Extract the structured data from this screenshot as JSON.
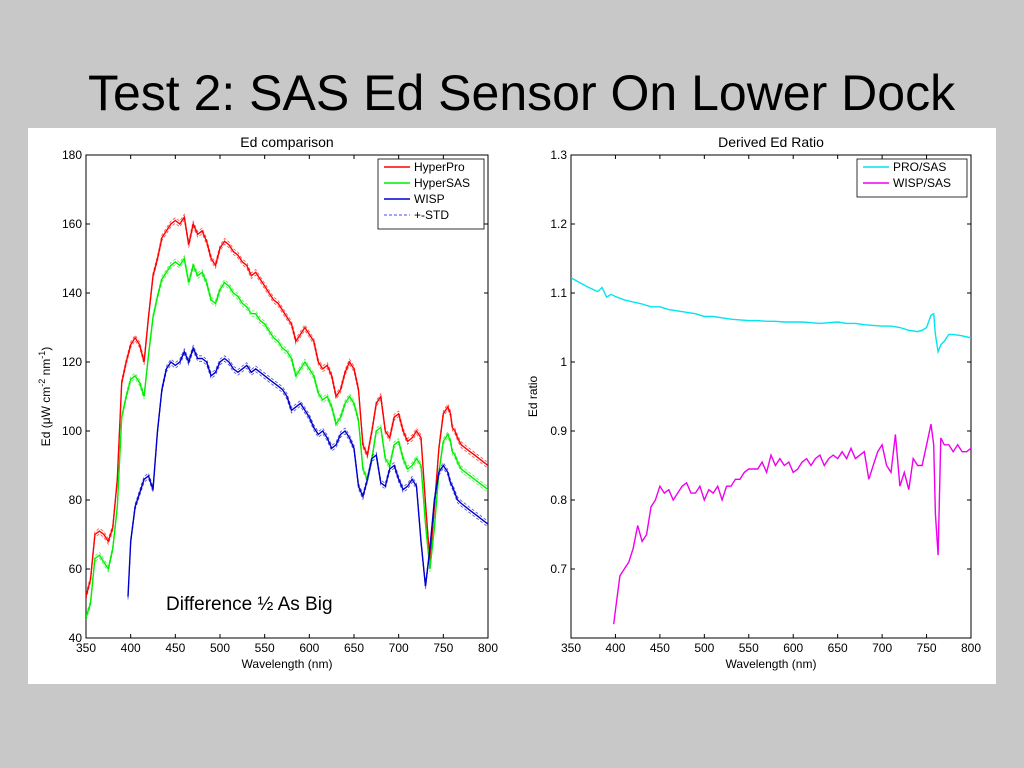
{
  "slide": {
    "title": "Test 2: SAS Ed Sensor On Lower Dock",
    "annotation": "Difference ½  As Big"
  },
  "chart_data": [
    {
      "type": "line",
      "title": "Ed comparison",
      "xlabel": "Wavelength (nm)",
      "ylabel_parts": [
        "Ed (",
        "μ",
        "W cm",
        "-2",
        " nm",
        "-1",
        ")"
      ],
      "xlim": [
        350,
        800
      ],
      "ylim": [
        40,
        180
      ],
      "xticks": [
        350,
        400,
        450,
        500,
        550,
        600,
        650,
        700,
        750,
        800
      ],
      "yticks": [
        40,
        60,
        80,
        100,
        120,
        140,
        160,
        180
      ],
      "grid": false,
      "legend_position": "top-right",
      "std_legend_label": "+-STD",
      "std_offset": 0.8,
      "series": [
        {
          "name": "HyperPro",
          "color": "#ff0000",
          "with_std": true,
          "x": [
            350,
            355,
            360,
            365,
            370,
            375,
            380,
            385,
            390,
            395,
            400,
            405,
            410,
            415,
            420,
            425,
            430,
            435,
            440,
            445,
            450,
            455,
            460,
            465,
            470,
            475,
            480,
            485,
            490,
            495,
            500,
            505,
            510,
            515,
            520,
            525,
            530,
            535,
            540,
            545,
            550,
            555,
            560,
            565,
            570,
            575,
            580,
            585,
            590,
            595,
            600,
            605,
            610,
            615,
            620,
            625,
            630,
            635,
            640,
            645,
            650,
            655,
            660,
            665,
            670,
            675,
            680,
            685,
            690,
            695,
            700,
            705,
            710,
            715,
            720,
            725,
            730,
            735,
            740,
            745,
            750,
            755,
            758,
            760,
            763,
            766,
            770,
            775,
            780,
            785,
            790,
            795,
            800
          ],
          "y": [
            52,
            57,
            70,
            71,
            70,
            68,
            72,
            86,
            114,
            120,
            125,
            127,
            125,
            120,
            133,
            145,
            150,
            156,
            158,
            160,
            161,
            160,
            162,
            154,
            160,
            157,
            158,
            155,
            150,
            148,
            153,
            155,
            154,
            152,
            151,
            149,
            148,
            145,
            146,
            144,
            142,
            140,
            138,
            137,
            135,
            133,
            131,
            126,
            128,
            130,
            128,
            126,
            120,
            118,
            119,
            116,
            110,
            112,
            117,
            120,
            118,
            112,
            96,
            93,
            100,
            108,
            110,
            100,
            98,
            104,
            105,
            100,
            97,
            98,
            100,
            98,
            79,
            62,
            78,
            95,
            105,
            107,
            105,
            101,
            100,
            98,
            96,
            95,
            94,
            93,
            92,
            91,
            90
          ]
        },
        {
          "name": "HyperSAS",
          "color": "#00ee00",
          "with_std": true,
          "x": [
            350,
            355,
            360,
            365,
            370,
            375,
            380,
            385,
            390,
            395,
            400,
            405,
            410,
            415,
            420,
            425,
            430,
            435,
            440,
            445,
            450,
            455,
            460,
            465,
            470,
            475,
            480,
            485,
            490,
            495,
            500,
            505,
            510,
            515,
            520,
            525,
            530,
            535,
            540,
            545,
            550,
            555,
            560,
            565,
            570,
            575,
            580,
            585,
            590,
            595,
            600,
            605,
            610,
            615,
            620,
            625,
            630,
            635,
            640,
            645,
            650,
            655,
            660,
            665,
            670,
            675,
            680,
            685,
            690,
            695,
            700,
            705,
            710,
            715,
            720,
            725,
            730,
            735,
            740,
            745,
            750,
            755,
            758,
            760,
            763,
            766,
            770,
            775,
            780,
            785,
            790,
            795,
            800
          ],
          "y": [
            46,
            50,
            63,
            64,
            62,
            60,
            66,
            78,
            104,
            110,
            115,
            116,
            114,
            110,
            122,
            133,
            139,
            144,
            146,
            148,
            149,
            148,
            150,
            143,
            148,
            145,
            146,
            143,
            138,
            137,
            141,
            143,
            142,
            140,
            139,
            137,
            136,
            134,
            134,
            132,
            131,
            129,
            127,
            126,
            124,
            123,
            121,
            116,
            118,
            120,
            118,
            116,
            111,
            109,
            110,
            107,
            102,
            104,
            108,
            110,
            108,
            103,
            89,
            86,
            92,
            100,
            101,
            92,
            90,
            96,
            97,
            92,
            89,
            90,
            92,
            90,
            73,
            60,
            72,
            88,
            97,
            99,
            97,
            94,
            93,
            91,
            89,
            88,
            87,
            86,
            85,
            84,
            83
          ]
        },
        {
          "name": "WISP",
          "color": "#0000cc",
          "with_std": true,
          "x": [
            397,
            400,
            405,
            410,
            415,
            420,
            425,
            430,
            435,
            440,
            445,
            450,
            455,
            460,
            465,
            470,
            475,
            480,
            485,
            490,
            495,
            500,
            505,
            510,
            515,
            520,
            525,
            530,
            535,
            540,
            545,
            550,
            555,
            560,
            565,
            570,
            575,
            580,
            585,
            590,
            595,
            600,
            605,
            610,
            615,
            620,
            625,
            630,
            635,
            640,
            645,
            650,
            655,
            660,
            665,
            670,
            675,
            680,
            685,
            690,
            695,
            700,
            705,
            710,
            715,
            720,
            725,
            730,
            735,
            740,
            745,
            750,
            755,
            758,
            760,
            763,
            766,
            770,
            775,
            780,
            785,
            790,
            795,
            800
          ],
          "y": [
            52,
            68,
            78,
            82,
            86,
            87,
            83,
            100,
            112,
            118,
            120,
            119,
            120,
            123,
            120,
            124,
            121,
            121,
            120,
            116,
            117,
            120,
            121,
            120,
            118,
            117,
            118,
            119,
            117,
            118,
            117,
            116,
            115,
            114,
            113,
            112,
            110,
            106,
            107,
            108,
            106,
            104,
            101,
            99,
            100,
            98,
            95,
            96,
            99,
            100,
            98,
            95,
            84,
            81,
            86,
            92,
            93,
            85,
            84,
            89,
            90,
            86,
            83,
            84,
            86,
            84,
            68,
            55,
            66,
            80,
            88,
            90,
            88,
            85,
            84,
            82,
            80,
            79,
            78,
            77,
            76,
            75,
            74,
            73
          ]
        }
      ]
    },
    {
      "type": "line",
      "title": "Derived Ed Ratio",
      "xlabel": "Wavelength (nm)",
      "ylabel": "Ed ratio",
      "xlim": [
        350,
        800
      ],
      "ylim": [
        0.6,
        1.3
      ],
      "xticks": [
        350,
        400,
        450,
        500,
        550,
        600,
        650,
        700,
        750,
        800
      ],
      "yticks": [
        0.7,
        0.8,
        0.9,
        1,
        1.1,
        1.2,
        1.3
      ],
      "grid": false,
      "legend_position": "top-right",
      "series": [
        {
          "name": "PRO/SAS",
          "color": "#00e5ee",
          "x": [
            350,
            360,
            370,
            380,
            385,
            390,
            395,
            400,
            410,
            420,
            430,
            440,
            450,
            460,
            470,
            480,
            490,
            500,
            510,
            520,
            530,
            540,
            550,
            560,
            570,
            580,
            590,
            600,
            610,
            620,
            630,
            640,
            650,
            660,
            670,
            680,
            690,
            700,
            710,
            720,
            730,
            740,
            745,
            750,
            755,
            758,
            760,
            763,
            766,
            770,
            775,
            780,
            790,
            800
          ],
          "y": [
            1.122,
            1.115,
            1.108,
            1.102,
            1.108,
            1.094,
            1.098,
            1.095,
            1.09,
            1.087,
            1.084,
            1.08,
            1.08,
            1.076,
            1.074,
            1.072,
            1.07,
            1.066,
            1.066,
            1.064,
            1.062,
            1.061,
            1.06,
            1.06,
            1.059,
            1.059,
            1.058,
            1.058,
            1.058,
            1.057,
            1.056,
            1.057,
            1.058,
            1.056,
            1.056,
            1.054,
            1.053,
            1.052,
            1.052,
            1.05,
            1.046,
            1.044,
            1.046,
            1.05,
            1.068,
            1.07,
            1.04,
            1.015,
            1.025,
            1.03,
            1.04,
            1.04,
            1.038,
            1.035
          ]
        },
        {
          "name": "WISP/SAS",
          "color": "#ee00ee",
          "x": [
            398,
            400,
            405,
            410,
            415,
            420,
            425,
            430,
            435,
            440,
            445,
            450,
            455,
            460,
            465,
            470,
            475,
            480,
            485,
            490,
            495,
            500,
            505,
            510,
            515,
            520,
            525,
            530,
            535,
            540,
            545,
            550,
            555,
            560,
            565,
            570,
            575,
            580,
            585,
            590,
            595,
            600,
            605,
            610,
            615,
            620,
            625,
            630,
            635,
            640,
            645,
            650,
            655,
            660,
            665,
            670,
            675,
            680,
            685,
            690,
            695,
            700,
            705,
            710,
            715,
            720,
            725,
            730,
            735,
            740,
            745,
            750,
            755,
            758,
            760,
            763,
            766,
            770,
            775,
            780,
            785,
            790,
            795,
            800
          ],
          "y": [
            0.62,
            0.64,
            0.69,
            0.7,
            0.71,
            0.73,
            0.763,
            0.74,
            0.75,
            0.79,
            0.8,
            0.82,
            0.81,
            0.815,
            0.8,
            0.81,
            0.82,
            0.825,
            0.81,
            0.81,
            0.82,
            0.8,
            0.815,
            0.81,
            0.82,
            0.8,
            0.82,
            0.82,
            0.83,
            0.83,
            0.84,
            0.845,
            0.845,
            0.845,
            0.855,
            0.84,
            0.865,
            0.85,
            0.86,
            0.85,
            0.855,
            0.84,
            0.845,
            0.855,
            0.86,
            0.85,
            0.86,
            0.865,
            0.85,
            0.86,
            0.865,
            0.86,
            0.87,
            0.86,
            0.875,
            0.86,
            0.865,
            0.87,
            0.83,
            0.85,
            0.87,
            0.88,
            0.85,
            0.84,
            0.895,
            0.82,
            0.84,
            0.815,
            0.86,
            0.85,
            0.85,
            0.88,
            0.91,
            0.88,
            0.78,
            0.72,
            0.89,
            0.88,
            0.88,
            0.87,
            0.88,
            0.87,
            0.87,
            0.875
          ]
        }
      ]
    }
  ]
}
